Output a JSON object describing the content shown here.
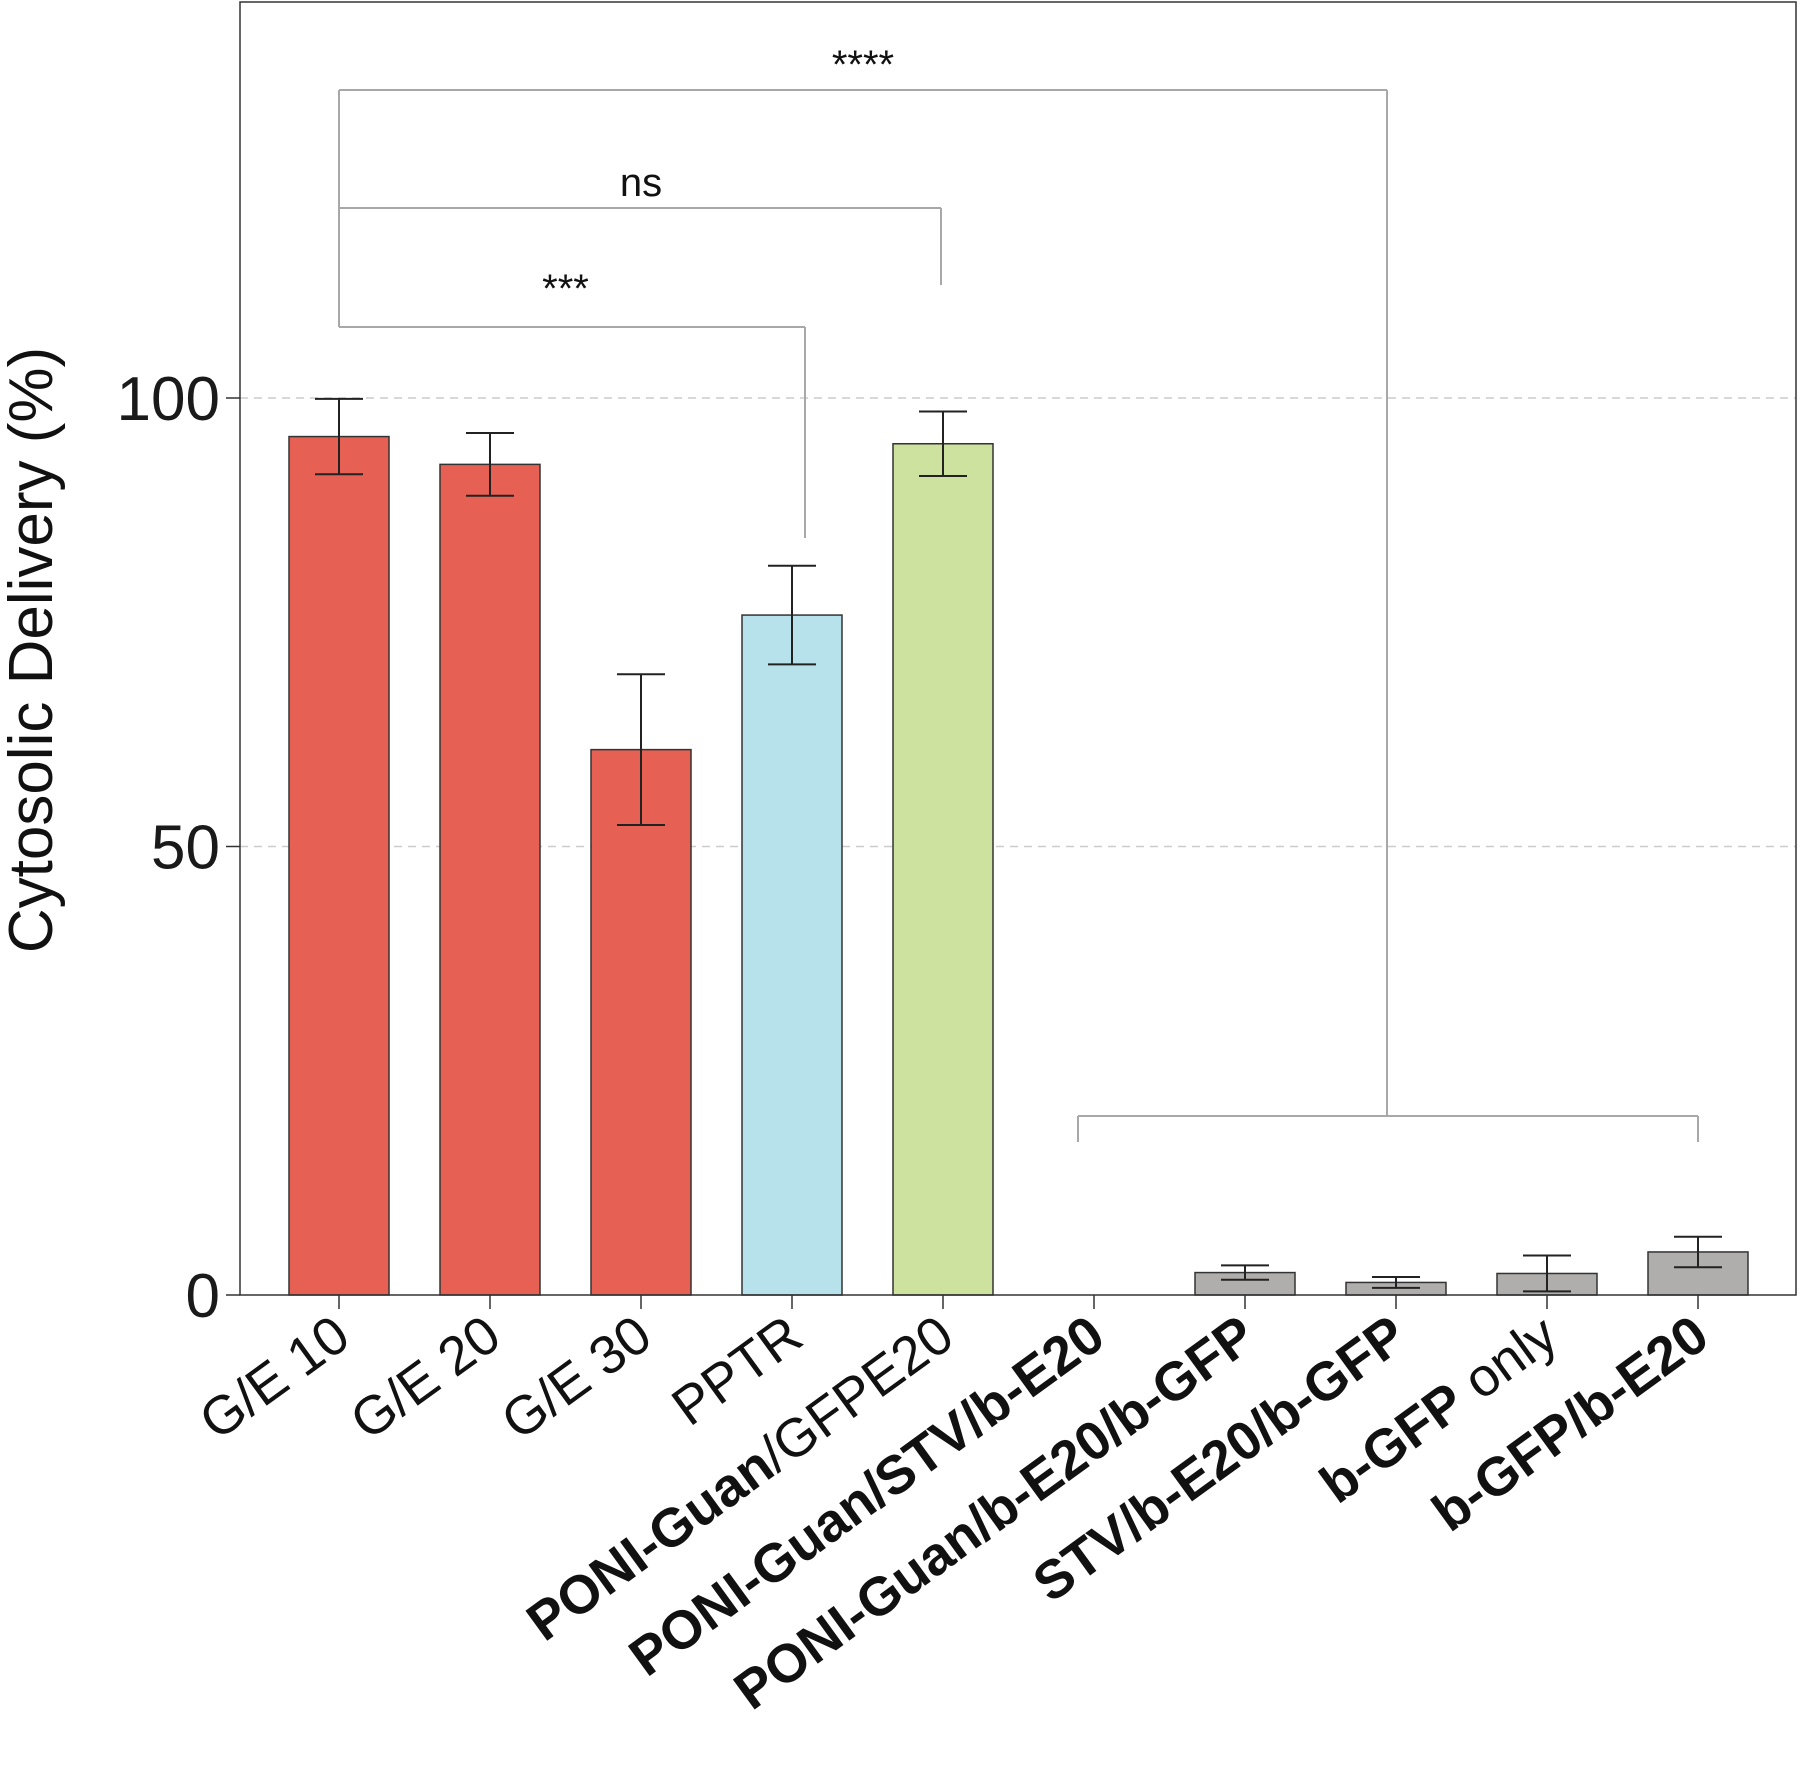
{
  "chart_data": {
    "type": "bar",
    "title": "",
    "xlabel": "",
    "ylabel": "Cytosolic Delivery (%)",
    "ylim": [
      0,
      100
    ],
    "yticks": [
      "0",
      "50",
      "100"
    ],
    "grid": "dashed horizontal lines at 50 and 100",
    "categories": [
      [
        {
          "text": "G/E 10",
          "bold": false
        }
      ],
      [
        {
          "text": "G/E 20",
          "bold": false
        }
      ],
      [
        {
          "text": "G/E 30",
          "bold": false
        }
      ],
      [
        {
          "text": "PPTR",
          "bold": false
        }
      ],
      [
        {
          "text": "PONI-Guan",
          "bold": true
        },
        {
          "text": "/GFPE20",
          "bold": false
        }
      ],
      [
        {
          "text": "PONI-Guan/STV/b-E20",
          "bold": true
        }
      ],
      [
        {
          "text": "PONI-Guan/b-E20/b-GFP",
          "bold": true
        }
      ],
      [
        {
          "text": "STV/b-E20/b-GFP",
          "bold": true
        }
      ],
      [
        {
          "text": "b-GFP",
          "bold": true
        },
        {
          "text": " only",
          "bold": false
        }
      ],
      [
        {
          "text": "b-GFP/b-E20",
          "bold": true
        }
      ]
    ],
    "values": [
      95.7,
      92.6,
      60.8,
      75.8,
      94.9,
      0,
      2.5,
      1.4,
      2.4,
      4.8
    ],
    "errors": [
      4.2,
      3.5,
      8.4,
      5.5,
      3.6,
      0,
      0.8,
      0.6,
      2.0,
      1.7
    ],
    "colors": [
      "#e66153",
      "#e66153",
      "#e66153",
      "#b7e2ec",
      "#cde29e",
      "#b0aeac",
      "#b0aeac",
      "#b0aeac",
      "#b0aeac",
      "#b0aeac"
    ],
    "significance": [
      {
        "label": "***",
        "from": 0,
        "to": 3
      },
      {
        "label": "ns",
        "from": 0,
        "to": 4
      },
      {
        "label": "****",
        "from": 0,
        "to_group": [
          5,
          9
        ]
      }
    ]
  }
}
